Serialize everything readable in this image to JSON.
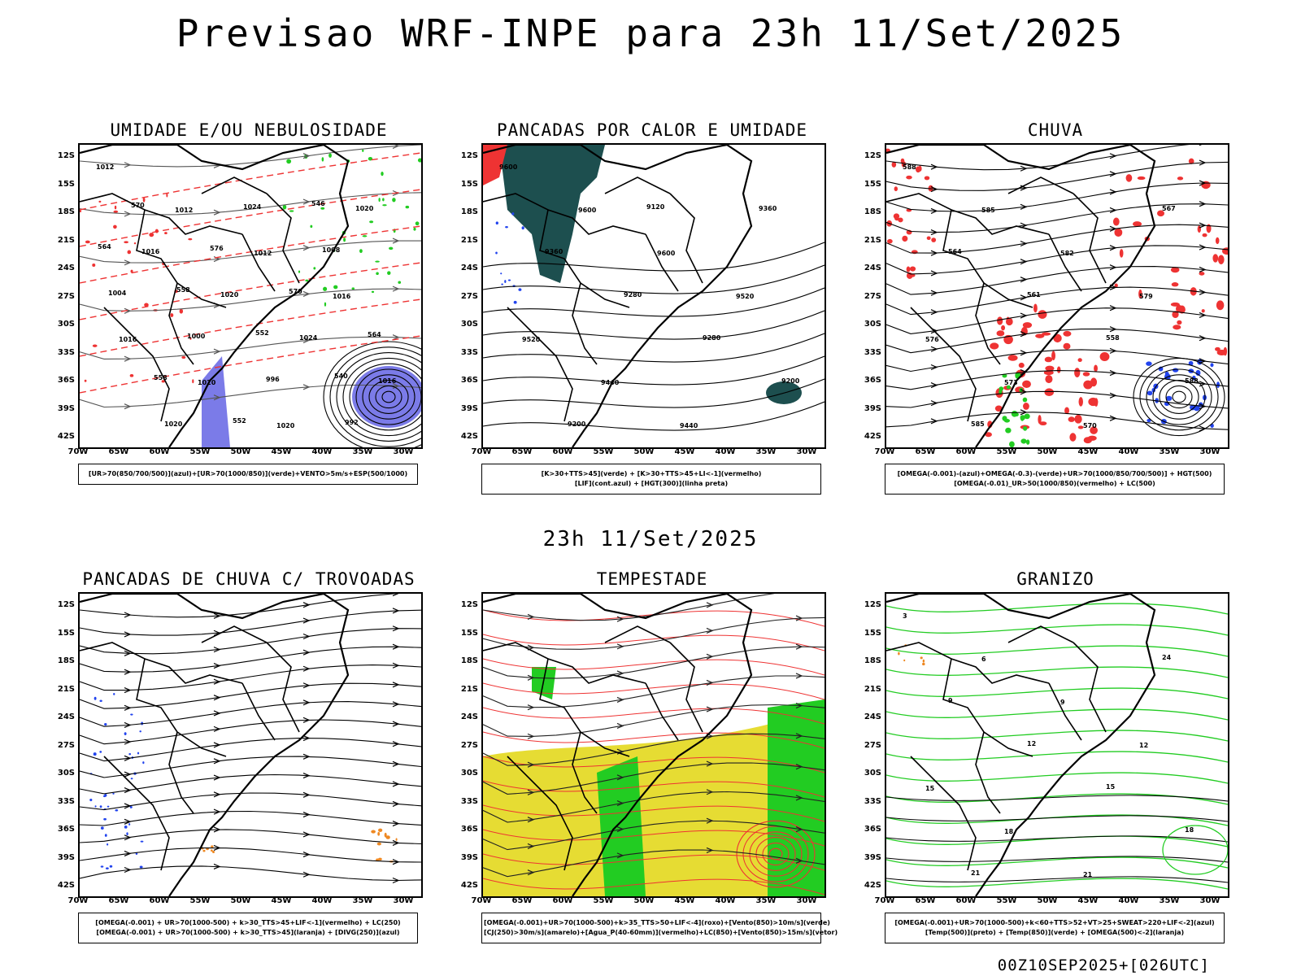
{
  "title": "Previsao WRF-INPE  para 23h 11/Set/2025",
  "middle_time": "23h 11/Set/2025",
  "footer": "00Z10SEP2025+[026UTC]",
  "axes": {
    "lat_labels": [
      "12S",
      "15S",
      "18S",
      "21S",
      "24S",
      "27S",
      "30S",
      "33S",
      "36S",
      "39S",
      "42S"
    ],
    "lon_labels": [
      "70W",
      "65W",
      "60W",
      "55W",
      "50W",
      "45W",
      "40W",
      "35W",
      "30W"
    ]
  },
  "colors": {
    "blue_fill": "#7b7be8",
    "green": "#22cc22",
    "red": "#ee3333",
    "dark_teal": "#1d4f4f",
    "yellow": "#e6dc33",
    "orange": "#ee8822",
    "blue": "#2244ee"
  },
  "panels": [
    {
      "id": "umidade",
      "title": "UMIDADE E/OU NEBULOSIDADE",
      "legend": [
        "[UR>70(850/700/500)](azul)+[UR>70(1000/850)](verde)+VENTO>5m/s+ESP(500/1000)"
      ],
      "contour_labels": [
        "1012",
        "1012",
        "1012",
        "1016",
        "1016",
        "1020",
        "1020",
        "1020",
        "1016",
        "1020",
        "1024",
        "1016",
        "1020",
        "1024",
        "1008",
        "1004",
        "1000",
        "996",
        "992",
        "570",
        "576",
        "570",
        "564",
        "558",
        "552",
        "546",
        "564",
        "558",
        "552",
        "540"
      ]
    },
    {
      "id": "pancadas-calor",
      "title": "PANCADAS POR CALOR E UMIDADE",
      "legend": [
        "[K>30+TTS>45](verde) + [K>30+TTS>45+LI<-1](vermelho)",
        "[LIF](cont.azul) + [HGT(300)](linha preta)"
      ],
      "contour_labels": [
        "9600",
        "9600",
        "9600",
        "9520",
        "9520",
        "9440",
        "9440",
        "9360",
        "9360",
        "9280",
        "9280",
        "9200",
        "9200",
        "9120"
      ]
    },
    {
      "id": "chuva",
      "title": "CHUVA",
      "legend": [
        "[OMEGA(-0.001)-(azul)+OMEGA(-0.3)-(verde)+UR>70(1000/850/700/500)] + HGT(500)",
        "[OMEGA(-0.01)_UR>50(1000/850)(vermelho) + LC(500)"
      ],
      "contour_labels": [
        "588",
        "585",
        "582",
        "579",
        "576",
        "573",
        "570",
        "567",
        "564",
        "561",
        "558",
        "588",
        "585"
      ]
    },
    {
      "id": "trovoadas",
      "title": "PANCADAS DE CHUVA C/ TROVOADAS",
      "legend": [
        "[OMEGA(-0.001) + UR>70(1000-500) + k>30_TTS>45+LIF<-1](vermelho) + LC(250)",
        "[OMEGA(-0.001) + UR>70(1000-500) + k>30_TTS>45](laranja) + [DIVG(250)](azul)"
      ],
      "contour_labels": []
    },
    {
      "id": "tempestade",
      "title": "TEMPESTADE",
      "legend": [
        "[OMEGA(-0.001)+UR>70(1000-500)+k>35_TTS>50+LIF<-4](roxo)+[Vento(850)>10m/s](verde)",
        "[CJ(250)>30m/s](amarelo)+[Agua_P(40-60mm)](vermelho)+LC(850)+[Vento(850)>15m/s](vetor)"
      ],
      "contour_labels": []
    },
    {
      "id": "granizo",
      "title": "GRANIZO",
      "legend": [
        "[OMEGA(-0.001)+UR>70(1000-500)+k<60+TTS>52+VT>25+SWEAT>220+LIF<-2](azul)",
        "[Temp(500)](preto) + [Temp(850)](verde) + [OMEGA(500)<-2](laranja)"
      ],
      "contour_labels": [
        "3",
        "6",
        "9",
        "12",
        "15",
        "18",
        "21",
        "24",
        "9",
        "12",
        "15",
        "18",
        "21"
      ]
    }
  ]
}
